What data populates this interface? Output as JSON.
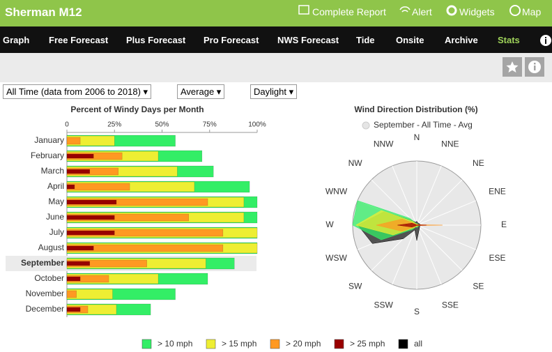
{
  "header": {
    "title": "Sherman M12",
    "links": [
      "Complete Report",
      "Alert",
      "Widgets",
      "Map"
    ]
  },
  "nav": [
    "Graph",
    "Free Forecast",
    "Plus Forecast",
    "Pro Forecast",
    "NWS Forecast",
    "Tide",
    "Onsite",
    "Archive",
    "Stats"
  ],
  "filters": [
    "All Time (data from 2006 to 2018)",
    "Average",
    "Daylight"
  ],
  "chart_data": [
    {
      "type": "bar",
      "title": "Percent of Windy Days per Month",
      "orientation": "horizontal",
      "highlight": "September",
      "categories": [
        "January",
        "February",
        "March",
        "April",
        "May",
        "June",
        "July",
        "August",
        "September",
        "October",
        "November",
        "December"
      ],
      "xlim": [
        0,
        100
      ],
      "xticks": [
        0,
        {
          "value": 25,
          "label": "25%"
        },
        {
          "value": 50,
          "label": "50%"
        },
        {
          "value": 75,
          "label": "75%"
        },
        {
          "value": 100,
          "label": "100%"
        }
      ],
      "series": [
        {
          "color": "#33ee66",
          "values": [
            57,
            71,
            77,
            96,
            100,
            100,
            100,
            100,
            88,
            74,
            57,
            44
          ]
        },
        {
          "color": "#eeee33",
          "values": [
            25,
            48,
            58,
            67,
            93,
            93,
            100,
            100,
            73,
            48,
            24,
            26
          ]
        },
        {
          "color": "#ff9922",
          "values": [
            7,
            29,
            27,
            33,
            74,
            64,
            82,
            82,
            42,
            22,
            5,
            11
          ]
        },
        {
          "color": "#990000",
          "values": [
            0,
            14,
            12,
            4,
            26,
            25,
            25,
            14,
            12,
            7,
            0,
            7
          ]
        }
      ]
    },
    {
      "type": "polar-area",
      "title": "Wind Direction Distribution (%)",
      "subtitle": "September - All Time - Avg",
      "categories": [
        "N",
        "NNE",
        "NE",
        "ENE",
        "E",
        "ESE",
        "SE",
        "SSE",
        "S",
        "SSW",
        "SW",
        "WSW",
        "W",
        "WNW",
        "NW",
        "NNW"
      ],
      "rlim": [
        0,
        100
      ],
      "series": [
        {
          "name": "all",
          "color": "#000000",
          "values": [
            6,
            4,
            4,
            5,
            6,
            5,
            6,
            9,
            24,
            8,
            30,
            75,
            92,
            55,
            10,
            5
          ]
        },
        {
          "name": "> 10 mph",
          "color": "#33ee66",
          "values": [
            3,
            2,
            2,
            3,
            4,
            3,
            3,
            3,
            4,
            3,
            10,
            60,
            100,
            100,
            15,
            3
          ]
        },
        {
          "name": "> 15 mph",
          "color": "#eeee33",
          "values": [
            2,
            2,
            2,
            2,
            3,
            2,
            2,
            2,
            3,
            2,
            6,
            40,
            95,
            60,
            8,
            2
          ]
        },
        {
          "name": "> 20 mph",
          "color": "#ff9922",
          "values": [
            1,
            1,
            1,
            2,
            40,
            2,
            1,
            1,
            1,
            1,
            3,
            25,
            63,
            25,
            3,
            1
          ]
        },
        {
          "name": "> 25 mph",
          "color": "#990000",
          "values": [
            0,
            0,
            0,
            1,
            15,
            1,
            0,
            0,
            0,
            0,
            1,
            8,
            30,
            8,
            1,
            0
          ]
        }
      ]
    }
  ]
}
